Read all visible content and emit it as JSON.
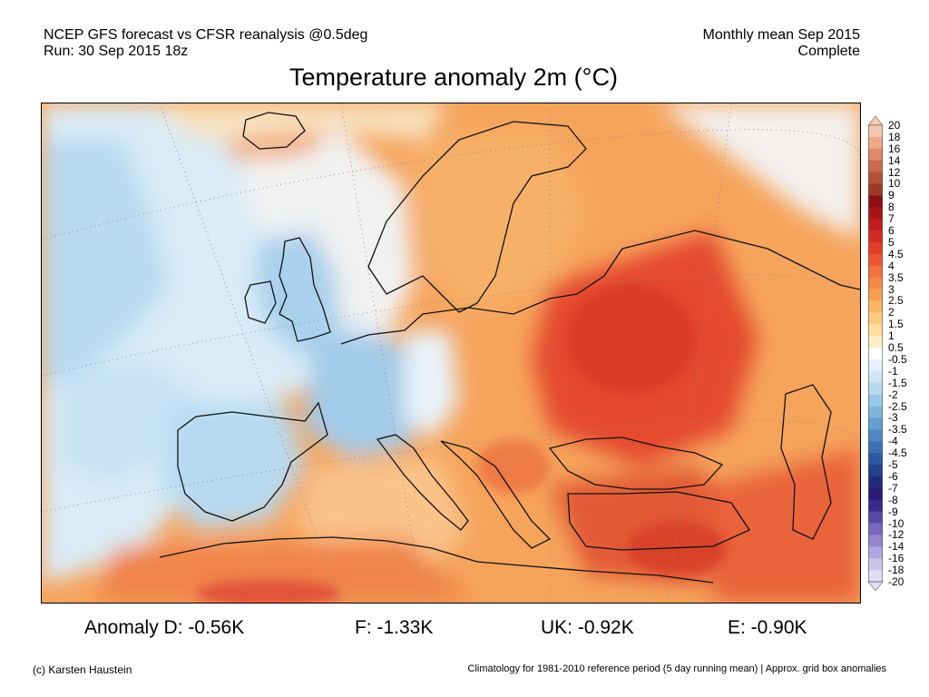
{
  "header": {
    "source_line": "NCEP GFS forecast vs CFSR reanalysis @0.5deg",
    "run_line": "Run: 30 Sep 2015 18z",
    "period_line": "Monthly mean Sep 2015",
    "status_line": "Complete"
  },
  "title": "Temperature anomaly 2m (°C)",
  "colorbar": {
    "labels": [
      "20",
      "18",
      "16",
      "14",
      "12",
      "10",
      "9",
      "8",
      "7",
      "6",
      "5",
      "4.5",
      "4",
      "3.5",
      "3",
      "2.5",
      "2",
      "1.5",
      "1",
      "0.5",
      "-0.5",
      "-1",
      "-1.5",
      "-2",
      "-2.5",
      "-3",
      "-3.5",
      "-4",
      "-4.5",
      "-5",
      "-6",
      "-7",
      "-8",
      "-9",
      "-10",
      "-12",
      "-14",
      "-16",
      "-18",
      "-20"
    ],
    "colors": [
      "#f6c7b0",
      "#eda98a",
      "#dd8866",
      "#c86a4a",
      "#b35236",
      "#9c3a26",
      "#8c0f12",
      "#a81418",
      "#c01d1c",
      "#d42b22",
      "#e33d2a",
      "#ec5533",
      "#f2703d",
      "#f58948",
      "#f7a055",
      "#f9b666",
      "#fbcc7f",
      "#fcdf9a",
      "#fdefc3",
      "#ffffff",
      "#e6f2fb",
      "#cfe6f6",
      "#b6d9f0",
      "#9ac8e8",
      "#7fb5dd",
      "#659fd0",
      "#4f88c2",
      "#3c70b4",
      "#2d58a3",
      "#26408f",
      "#232b80",
      "#2a1b78",
      "#3b2a8c",
      "#5a48a6",
      "#7a68bd",
      "#9686d1",
      "#b2a6e0",
      "#cbc3ec",
      "#e2ddf5"
    ]
  },
  "stats": {
    "germany": "Anomaly D: -0.56K",
    "france": "F: -1.33K",
    "uk": "UK: -0.92K",
    "europe": "E: -0.90K"
  },
  "footer": {
    "credit": "(c) Karsten Haustein",
    "note": "Climatology for 1981-2010 reference period (5 day running mean) | Approx. grid box anomalies"
  }
}
